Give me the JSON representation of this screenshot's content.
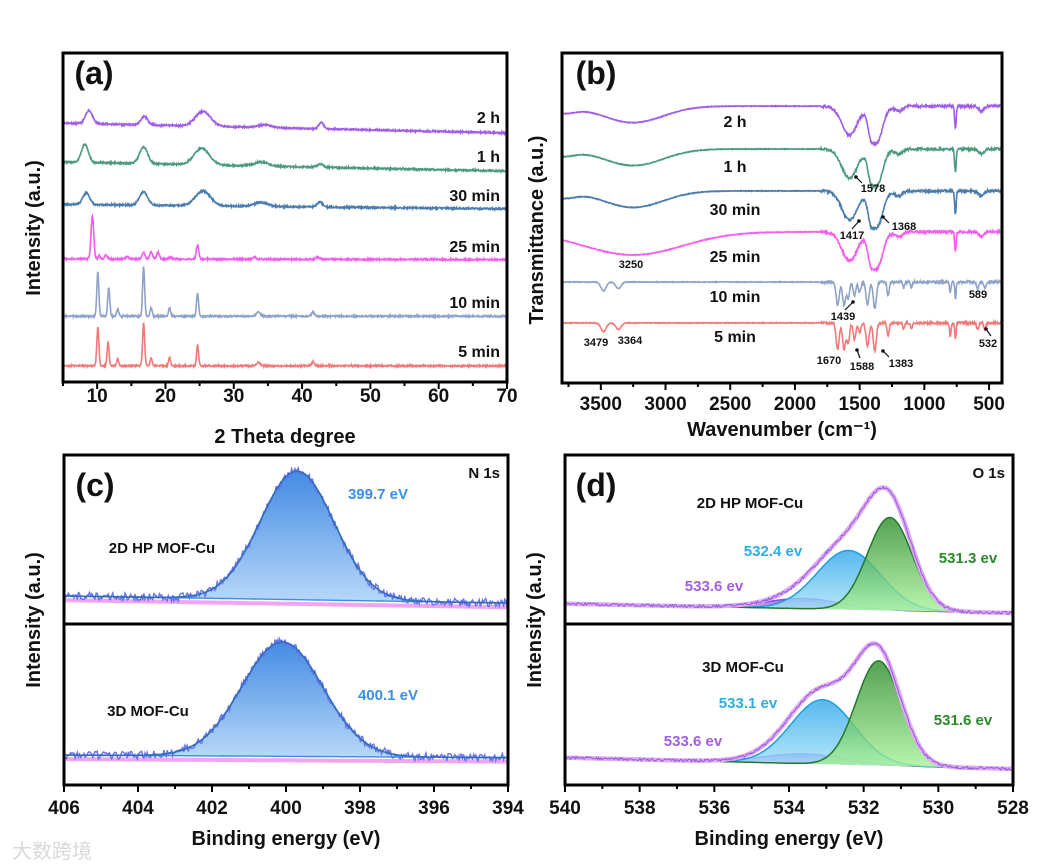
{
  "watermark": "大数跨境",
  "chart_data": [
    {
      "type": "line",
      "panel_label": "(a)",
      "xlabel": "2 Theta degree",
      "ylabel": "Intensity (a.u.)",
      "xlim": [
        5,
        70
      ],
      "xticks": [
        10,
        20,
        30,
        40,
        50,
        60,
        70
      ],
      "ylim": [
        0,
        100
      ],
      "series": [
        {
          "name": "2 h",
          "color": "#a05ee8",
          "baseline": [
            78.7,
            75.7
          ],
          "peaks": [
            [
              8.8,
              4,
              0.5
            ],
            [
              16.9,
              2.5,
              0.5
            ],
            [
              25.5,
              4.5,
              1.1
            ],
            [
              34.5,
              0.8,
              1
            ],
            [
              42.8,
              2,
              0.35
            ]
          ]
        },
        {
          "name": "1 h",
          "color": "#4c9a7c",
          "baseline": [
            66.9,
            64.1
          ],
          "peaks": [
            [
              8.2,
              5.5,
              0.5
            ],
            [
              16.8,
              5,
              0.6
            ],
            [
              25.3,
              5,
              1.1
            ],
            [
              34,
              1.2,
              1
            ],
            [
              42.7,
              1,
              0.4
            ]
          ]
        },
        {
          "name": "30 min",
          "color": "#4a7cae",
          "baseline": [
            54,
            52.6
          ],
          "peaks": [
            [
              8.4,
              3.5,
              0.5
            ],
            [
              16.8,
              4,
              0.6
            ],
            [
              25.5,
              4.5,
              1.1
            ],
            [
              34,
              1.2,
              1
            ],
            [
              42.6,
              1.5,
              0.4
            ]
          ]
        },
        {
          "name": "25 min",
          "color": "#f25cf0",
          "baseline": [
            37.4,
            37.2
          ],
          "peaks": [
            [
              9.3,
              13,
              0.2
            ],
            [
              10.3,
              1,
              0.15
            ],
            [
              11.3,
              1.2,
              0.2
            ],
            [
              14.4,
              0.8,
              0.2
            ],
            [
              16.8,
              2,
              0.2
            ],
            [
              17.9,
              2.2,
              0.2
            ],
            [
              18.9,
              2,
              0.2
            ],
            [
              20.7,
              0.6,
              0.2
            ],
            [
              24.7,
              4.3,
              0.18
            ],
            [
              33,
              0.8,
              0.2
            ],
            [
              42.3,
              0.6,
              0.3
            ]
          ]
        },
        {
          "name": "10 min",
          "color": "#8fa2c8",
          "baseline": [
            20,
            20
          ],
          "peaks": [
            [
              10.1,
              13.4,
              0.15
            ],
            [
              11.7,
              8.6,
              0.15
            ],
            [
              13,
              2.2,
              0.15
            ],
            [
              16.8,
              15,
              0.15
            ],
            [
              17.9,
              2.5,
              0.15
            ],
            [
              20.6,
              2.5,
              0.15
            ],
            [
              24.7,
              7,
              0.15
            ],
            [
              33.6,
              1.2,
              0.3
            ],
            [
              41.6,
              1.3,
              0.2
            ]
          ]
        },
        {
          "name": "5 min",
          "color": "#f07a78",
          "baseline": [
            4.9,
            4.9
          ],
          "peaks": [
            [
              10.1,
              11.8,
              0.15
            ],
            [
              11.6,
              7,
              0.15
            ],
            [
              13,
              2,
              0.15
            ],
            [
              16.8,
              13,
              0.15
            ],
            [
              17.9,
              2.5,
              0.15
            ],
            [
              20.6,
              2.5,
              0.15
            ],
            [
              24.7,
              6.3,
              0.15
            ],
            [
              33.6,
              1,
              0.3
            ],
            [
              41.6,
              1.2,
              0.2
            ]
          ]
        }
      ]
    },
    {
      "type": "line",
      "panel_label": "(b)",
      "xlabel": "Wavenumber (cm⁻¹)",
      "ylabel": "Transmittance (a.u.)",
      "xlim": [
        3800,
        400
      ],
      "xticks": [
        3500,
        3000,
        2500,
        2000,
        1500,
        1000,
        500
      ],
      "ylim": [
        0,
        100
      ],
      "series": [
        {
          "name": "2 h",
          "color": "#a05ee8",
          "baseline": 83.9,
          "bands": [
            [
              3800,
              2,
              100
            ],
            [
              3250,
              5,
              230
            ],
            [
              1578,
              8.8,
              60
            ],
            [
              1417,
              4,
              20
            ],
            [
              1368,
              11,
              45
            ],
            [
              1200,
              1.5,
              30
            ],
            [
              760,
              7,
              6
            ],
            [
              560,
              1.5,
              20
            ]
          ]
        },
        {
          "name": "1 h",
          "color": "#4c9a7c",
          "baseline": 70.9,
          "bands": [
            [
              3800,
              2,
              100
            ],
            [
              3250,
              5,
              230
            ],
            [
              1578,
              8.8,
              60
            ],
            [
              1417,
              4,
              20
            ],
            [
              1368,
              11,
              45
            ],
            [
              1200,
              1.5,
              30
            ],
            [
              760,
              7,
              6
            ],
            [
              560,
              1.5,
              20
            ]
          ]
        },
        {
          "name": "30 min",
          "color": "#4a7cae",
          "baseline": 58.2,
          "bands": [
            [
              3800,
              2,
              100
            ],
            [
              3250,
              5,
              230
            ],
            [
              1578,
              8.8,
              60
            ],
            [
              1417,
              4,
              20
            ],
            [
              1368,
              11,
              45
            ],
            [
              1200,
              1.5,
              30
            ],
            [
              760,
              7,
              6
            ],
            [
              560,
              1.5,
              20
            ]
          ]
        },
        {
          "name": "25 min",
          "color": "#f25cf0",
          "baseline": 45.8,
          "bands": [
            [
              3250,
              7,
              380
            ],
            [
              1578,
              8.8,
              60
            ],
            [
              1417,
              4,
              20
            ],
            [
              1368,
              11,
              45
            ],
            [
              1200,
              1.5,
              30
            ],
            [
              760,
              6,
              6
            ],
            [
              560,
              1.5,
              20
            ]
          ]
        },
        {
          "name": "10 min",
          "color": "#8fa2c8",
          "baseline": 30.6,
          "bands": [
            [
              3479,
              2.7,
              20
            ],
            [
              3364,
              2,
              20
            ],
            [
              1670,
              7,
              12
            ],
            [
              1620,
              7,
              12
            ],
            [
              1588,
              5,
              10
            ],
            [
              1540,
              4,
              10
            ],
            [
              1500,
              3,
              10
            ],
            [
              1439,
              7,
              12
            ],
            [
              1383,
              8,
              12
            ],
            [
              1280,
              4,
              8
            ],
            [
              1160,
              2,
              6
            ],
            [
              1100,
              2,
              6
            ],
            [
              800,
              3,
              6
            ],
            [
              760,
              5,
              5
            ],
            [
              589,
              2,
              8
            ],
            [
              532,
              2,
              8
            ]
          ]
        },
        {
          "name": "5 min",
          "color": "#f07a78",
          "baseline": 18.2,
          "bands": [
            [
              3479,
              2.7,
              20
            ],
            [
              3364,
              2,
              20
            ],
            [
              1670,
              8,
              12
            ],
            [
              1620,
              8,
              12
            ],
            [
              1588,
              6,
              10
            ],
            [
              1540,
              5,
              10
            ],
            [
              1500,
              3,
              10
            ],
            [
              1439,
              7,
              12
            ],
            [
              1383,
              8.5,
              12
            ],
            [
              1280,
              4,
              8
            ],
            [
              1160,
              2,
              6
            ],
            [
              1100,
              2,
              6
            ],
            [
              800,
              4,
              6
            ],
            [
              760,
              5,
              5
            ],
            [
              589,
              2,
              8
            ],
            [
              532,
              2,
              8
            ]
          ]
        }
      ],
      "annotations": [
        "1578",
        "1368",
        "1417",
        "3250",
        "589",
        "1439",
        "3479",
        "3364",
        "1670",
        "1588",
        "1383",
        "532"
      ]
    },
    {
      "type": "area",
      "panel_label": "(c)",
      "title": "N 1s",
      "xlabel": "Binding energy (eV)",
      "ylabel": "Intensity (a.u.)",
      "xlim": [
        406,
        394
      ],
      "xticks": [
        406,
        404,
        402,
        400,
        398,
        396,
        394
      ],
      "ylim": [
        0,
        1
      ],
      "subplots": [
        {
          "name": "2D HP MOF-Cu",
          "baseline": [
            0.166,
            0.124
          ],
          "peaks": [
            {
              "label": "399.7 eV",
              "center": 399.7,
              "amplitude": 0.76,
              "sigma": 1.0,
              "color": "#3a8ee8"
            }
          ]
        },
        {
          "name": "3D MOF-Cu",
          "baseline": [
            0.186,
            0.17
          ],
          "peaks": [
            {
              "label": "400.1 eV",
              "center": 400.1,
              "amplitude": 0.71,
              "sigma": 1.1,
              "color": "#3a8ee8"
            }
          ]
        }
      ]
    },
    {
      "type": "area",
      "panel_label": "(d)",
      "title": "O 1s",
      "xlabel": "Binding energy (eV)",
      "ylabel": "Intensity (a.u.)",
      "xlim": [
        540,
        528
      ],
      "xticks": [
        540,
        538,
        536,
        534,
        532,
        530,
        528
      ],
      "ylim": [
        0,
        1
      ],
      "subplots": [
        {
          "name": "2D HP MOF-Cu",
          "baseline": [
            0.12,
            0.065
          ],
          "peaks": [
            {
              "label": "533.6 ev",
              "center": 533.6,
              "amplitude": 0.06,
              "sigma": 1.0,
              "color": "#a060e0"
            },
            {
              "label": "532.4 ev",
              "center": 532.4,
              "amplitude": 0.35,
              "sigma": 0.85,
              "color": "#2aaee6"
            },
            {
              "label": "531.3 ev",
              "center": 531.3,
              "amplitude": 0.55,
              "sigma": 0.6,
              "color": "#2a8a2a"
            }
          ]
        },
        {
          "name": "3D MOF-Cu",
          "baseline": [
            0.17,
            0.1
          ],
          "peaks": [
            {
              "label": "533.6 ev",
              "center": 533.6,
              "amplitude": 0.06,
              "sigma": 1.1,
              "color": "#a060e0"
            },
            {
              "label": "533.1 ev",
              "center": 533.1,
              "amplitude": 0.4,
              "sigma": 0.85,
              "color": "#2aaee6"
            },
            {
              "label": "531.6 ev",
              "center": 531.6,
              "amplitude": 0.65,
              "sigma": 0.6,
              "color": "#2a8a2a"
            }
          ]
        }
      ]
    }
  ]
}
